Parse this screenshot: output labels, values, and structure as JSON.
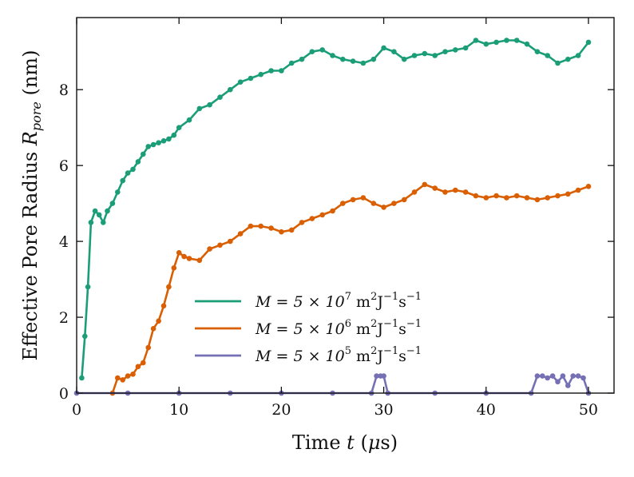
{
  "chart_data": {
    "type": "line",
    "title": "",
    "xlabel": "Time t (μs)",
    "ylabel": "Effective Pore Radius R_pore (nm)",
    "xlim": [
      0,
      52.5
    ],
    "ylim": [
      0,
      9.9
    ],
    "xticks": [
      0,
      10,
      20,
      30,
      40,
      50
    ],
    "yticks": [
      0,
      2,
      4,
      6,
      8
    ],
    "legend_position": "center-right",
    "series": [
      {
        "name": "M = 5 × 10^7 m^2J^-1s^-1",
        "legend": {
          "base": "M = 5 × 10",
          "exp": "7",
          "unit_m": " m",
          "unit_m_exp": "2",
          "unit_j": "J",
          "unit_j_exp": "−1",
          "unit_s": "s",
          "unit_s_exp": "−1"
        },
        "color": "#1b9e77",
        "x": [
          0.5,
          0.8,
          1.1,
          1.4,
          1.8,
          2.2,
          2.6,
          3.0,
          3.5,
          4.0,
          4.5,
          5.0,
          5.5,
          6.0,
          6.5,
          7.0,
          7.5,
          8.0,
          8.5,
          9.0,
          9.5,
          10.0,
          11.0,
          12.0,
          13.0,
          14.0,
          15.0,
          16.0,
          17.0,
          18.0,
          19.0,
          20.0,
          21.0,
          22.0,
          23.0,
          24.0,
          25.0,
          26.0,
          27.0,
          28.0,
          29.0,
          30.0,
          31.0,
          32.0,
          33.0,
          34.0,
          35.0,
          36.0,
          37.0,
          38.0,
          39.0,
          40.0,
          41.0,
          42.0,
          43.0,
          44.0,
          45.0,
          46.0,
          47.0,
          48.0,
          49.0,
          50.0
        ],
        "y": [
          0.4,
          1.5,
          2.8,
          4.5,
          4.8,
          4.7,
          4.5,
          4.8,
          5.0,
          5.3,
          5.6,
          5.8,
          5.9,
          6.1,
          6.3,
          6.5,
          6.55,
          6.6,
          6.65,
          6.7,
          6.8,
          7.0,
          7.2,
          7.5,
          7.6,
          7.8,
          8.0,
          8.2,
          8.3,
          8.4,
          8.5,
          8.5,
          8.7,
          8.8,
          9.0,
          9.05,
          8.9,
          8.8,
          8.75,
          8.7,
          8.8,
          9.1,
          9.0,
          8.8,
          8.9,
          8.95,
          8.9,
          9.0,
          9.05,
          9.1,
          9.3,
          9.2,
          9.25,
          9.3,
          9.3,
          9.2,
          9.0,
          8.9,
          8.7,
          8.8,
          8.9,
          9.25
        ]
      },
      {
        "name": "M = 5 × 10^6 m^2J^-1s^-1",
        "legend": {
          "base": "M = 5 × 10",
          "exp": "6",
          "unit_m": " m",
          "unit_m_exp": "2",
          "unit_j": "J",
          "unit_j_exp": "−1",
          "unit_s": "s",
          "unit_s_exp": "−1"
        },
        "color": "#d95f02",
        "x": [
          3.5,
          4.0,
          4.5,
          5.0,
          5.5,
          6.0,
          6.5,
          7.0,
          7.5,
          8.0,
          8.5,
          9.0,
          9.5,
          10.0,
          10.5,
          11.0,
          12.0,
          13.0,
          14.0,
          15.0,
          16.0,
          17.0,
          18.0,
          19.0,
          20.0,
          21.0,
          22.0,
          23.0,
          24.0,
          25.0,
          26.0,
          27.0,
          28.0,
          29.0,
          30.0,
          31.0,
          32.0,
          33.0,
          34.0,
          35.0,
          36.0,
          37.0,
          38.0,
          39.0,
          40.0,
          41.0,
          42.0,
          43.0,
          44.0,
          45.0,
          46.0,
          47.0,
          48.0,
          49.0,
          50.0
        ],
        "y": [
          0.0,
          0.4,
          0.35,
          0.45,
          0.5,
          0.7,
          0.8,
          1.2,
          1.7,
          1.9,
          2.3,
          2.8,
          3.3,
          3.7,
          3.6,
          3.55,
          3.5,
          3.8,
          3.9,
          4.0,
          4.2,
          4.4,
          4.4,
          4.35,
          4.25,
          4.3,
          4.5,
          4.6,
          4.7,
          4.8,
          5.0,
          5.1,
          5.15,
          5.0,
          4.9,
          5.0,
          5.1,
          5.3,
          5.5,
          5.4,
          5.3,
          5.35,
          5.3,
          5.2,
          5.15,
          5.2,
          5.15,
          5.2,
          5.15,
          5.1,
          5.15,
          5.2,
          5.25,
          5.35,
          5.45
        ]
      },
      {
        "name": "M = 5 × 10^5 m^2J^-1s^-1",
        "legend": {
          "base": "M = 5 × 10",
          "exp": "5",
          "unit_m": " m",
          "unit_m_exp": "2",
          "unit_j": "J",
          "unit_j_exp": "−1",
          "unit_s": "s",
          "unit_s_exp": "−1"
        },
        "color": "#7570b3",
        "x": [
          0,
          5,
          10,
          15,
          20,
          25,
          28.8,
          29.3,
          29.7,
          30.0,
          30.4,
          35,
          40,
          44.4,
          45.0,
          45.5,
          46.0,
          46.5,
          47.0,
          47.5,
          48.0,
          48.5,
          49.0,
          49.5,
          50.0
        ],
        "y": [
          0,
          0,
          0,
          0,
          0,
          0,
          0,
          0.45,
          0.45,
          0.45,
          0,
          0,
          0,
          0,
          0.45,
          0.45,
          0.4,
          0.45,
          0.3,
          0.45,
          0.2,
          0.45,
          0.45,
          0.4,
          0.0
        ]
      }
    ]
  }
}
